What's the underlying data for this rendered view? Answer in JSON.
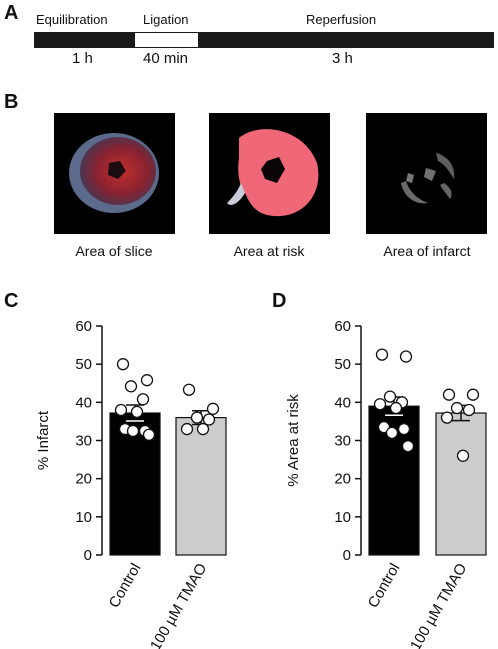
{
  "panels": {
    "a": "A",
    "b": "B",
    "c": "C",
    "d": "D"
  },
  "timeline": {
    "phases": [
      "Equilibration",
      "Ligation",
      "Reperfusion"
    ],
    "durations": [
      "1 h",
      "40 min",
      "3 h"
    ]
  },
  "slices": {
    "captions": [
      "Area of slice",
      "Area at risk",
      "Area of infarct"
    ]
  },
  "chart_data": [
    {
      "type": "bar",
      "panel": "C",
      "ylabel": "% Infarct",
      "ylim": [
        0,
        60
      ],
      "yticks": [
        0,
        10,
        20,
        30,
        40,
        50,
        60
      ],
      "categories": [
        "Control",
        "100 µM TMAO"
      ],
      "means": [
        37.2,
        36.0
      ],
      "sem": [
        2.1,
        1.8
      ],
      "bar_colors": [
        "#000000",
        "#cccccc"
      ],
      "points": [
        [
          50.0,
          45.8,
          44.2,
          40.8,
          38.0,
          37.5,
          33.0,
          32.5,
          32.5,
          31.5
        ],
        [
          43.3,
          38.3,
          36.0,
          35.5,
          33.0,
          33.0
        ]
      ]
    },
    {
      "type": "bar",
      "panel": "D",
      "ylabel": "% Area at risk",
      "ylim": [
        0,
        60
      ],
      "yticks": [
        0,
        10,
        20,
        30,
        40,
        50,
        60
      ],
      "categories": [
        "Control",
        "100 µM TMAO"
      ],
      "means": [
        39.0,
        37.2
      ],
      "sem": [
        2.4,
        2.0
      ],
      "bar_colors": [
        "#000000",
        "#cccccc"
      ],
      "points": [
        [
          52.5,
          52.0,
          41.5,
          40.0,
          39.5,
          38.5,
          33.5,
          33.0,
          32.0,
          28.5
        ],
        [
          42.0,
          42.0,
          38.5,
          38.0,
          36.0,
          26.0
        ]
      ]
    }
  ]
}
